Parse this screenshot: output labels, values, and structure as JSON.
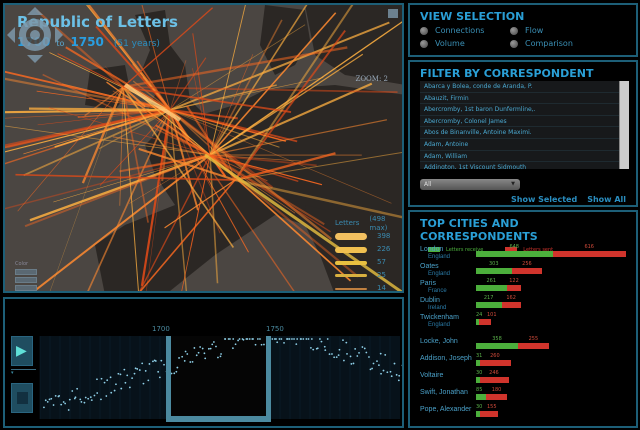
{
  "map": {
    "title": "Republic of Letters",
    "start_year": "1700",
    "to": "to",
    "end_year": "1750",
    "span": "(51 years)",
    "zoom": "ZOOM: 2",
    "legend": {
      "title": "Letters",
      "max": "(498 max)",
      "values": [
        "398",
        "226",
        "57",
        "25",
        "14"
      ],
      "colors": [
        "#f2c060",
        "#f0c050",
        "#e8c040",
        "#d8b040",
        "#c08040"
      ]
    },
    "color_legend": {
      "title": "Color"
    }
  },
  "view_selection": {
    "title": "VIEW SELECTION",
    "options": [
      {
        "label": "Connections",
        "selected": true
      },
      {
        "label": "Flow",
        "selected": false
      },
      {
        "label": "Volume",
        "selected": false
      },
      {
        "label": "Comparison",
        "selected": false
      }
    ]
  },
  "filter": {
    "title": "FILTER BY CORRESPONDENT",
    "items": [
      "Abarca y Bolea, conde de Aranda, P.",
      "Abauzit, Firmin",
      "Abercromby, 1st baron Dunfermline,.",
      "Abercromby, Colonel James",
      "Abos de Binanville, Antoine Maximi.",
      "Adam, Antoine",
      "Adam, William",
      "Addington, 1st Viscount Sidmouth"
    ],
    "dropdown": "All",
    "show_selected": "Show Selected",
    "show_all": "Show All"
  },
  "top": {
    "title": "TOP CITIES AND CORRESPONDENTS",
    "legend_received": "Letters receive",
    "legend_sent": "Letters sent",
    "colors": {
      "received": "#4caf3c",
      "sent": "#d0342c"
    },
    "cities": [
      {
        "name": "London",
        "country": "England",
        "received": 648,
        "sent": 616
      },
      {
        "name": "Oates",
        "country": "England",
        "received": 303,
        "sent": 256
      },
      {
        "name": "Paris",
        "country": "France",
        "received": 261,
        "sent": 122
      },
      {
        "name": "Dublin",
        "country": "Ireland",
        "received": 217,
        "sent": 162
      },
      {
        "name": "Twickenham",
        "country": "England",
        "received": 24,
        "sent": 101
      }
    ],
    "people": [
      {
        "name": "Locke, John",
        "received": 358,
        "sent": 255
      },
      {
        "name": "Addison, Joseph",
        "received": 31,
        "sent": 260
      },
      {
        "name": "Voltaire",
        "received": 30,
        "sent": 246
      },
      {
        "name": "Swift, Jonathan",
        "received": 85,
        "sent": 180
      },
      {
        "name": "Pope, Alexander",
        "received": 30,
        "sent": 155
      }
    ]
  },
  "timeline": {
    "start_label": "1700",
    "end_label": "1750"
  }
}
